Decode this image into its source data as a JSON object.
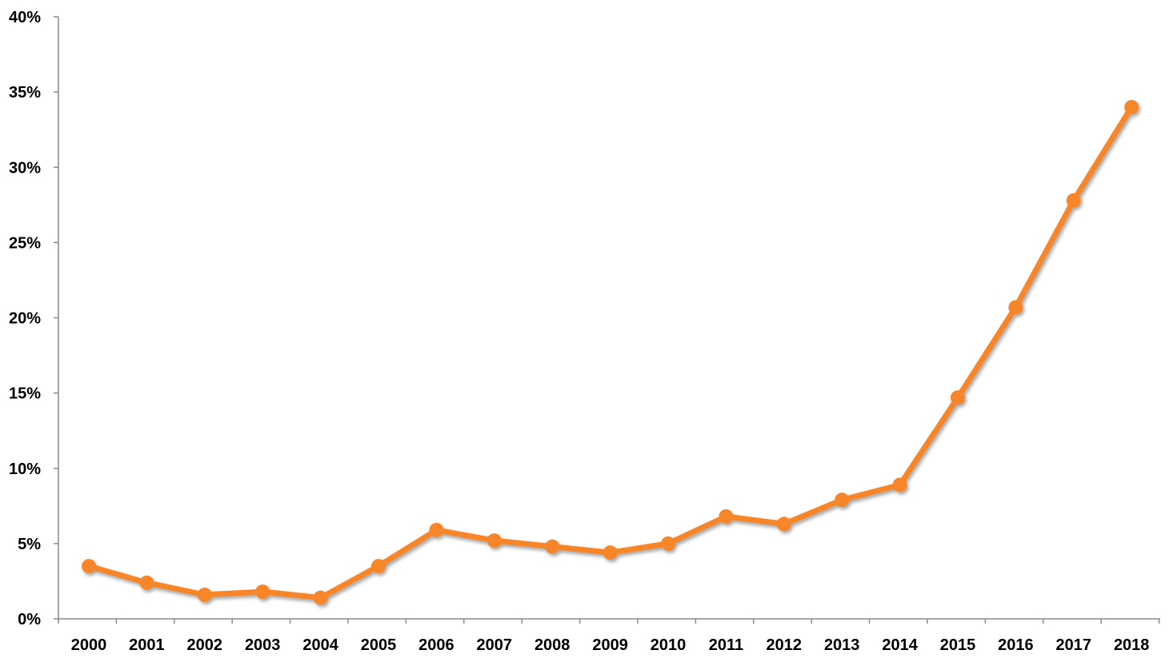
{
  "chart_data": {
    "type": "line",
    "title": "",
    "xlabel": "",
    "ylabel": "",
    "x": [
      "2000",
      "2001",
      "2002",
      "2003",
      "2004",
      "2005",
      "2006",
      "2007",
      "2008",
      "2009",
      "2010",
      "2011",
      "2012",
      "2013",
      "2014",
      "2015",
      "2016",
      "2017",
      "2018"
    ],
    "series": [
      {
        "values": [
          3.5,
          2.4,
          1.6,
          1.8,
          1.4,
          3.5,
          5.9,
          5.2,
          4.8,
          4.4,
          5.0,
          6.8,
          6.3,
          7.9,
          8.9,
          14.7,
          20.7,
          27.8,
          34.0
        ],
        "color": "#f7852b"
      }
    ],
    "ylim": [
      0,
      40
    ],
    "yticks": [
      0,
      5,
      10,
      15,
      20,
      25,
      30,
      35,
      40
    ],
    "ytick_labels": [
      "0%",
      "5%",
      "10%",
      "15%",
      "20%",
      "25%",
      "30%",
      "35%",
      "40%"
    ],
    "grid": false,
    "legend": "none",
    "marker": "circle",
    "shadow": true
  }
}
